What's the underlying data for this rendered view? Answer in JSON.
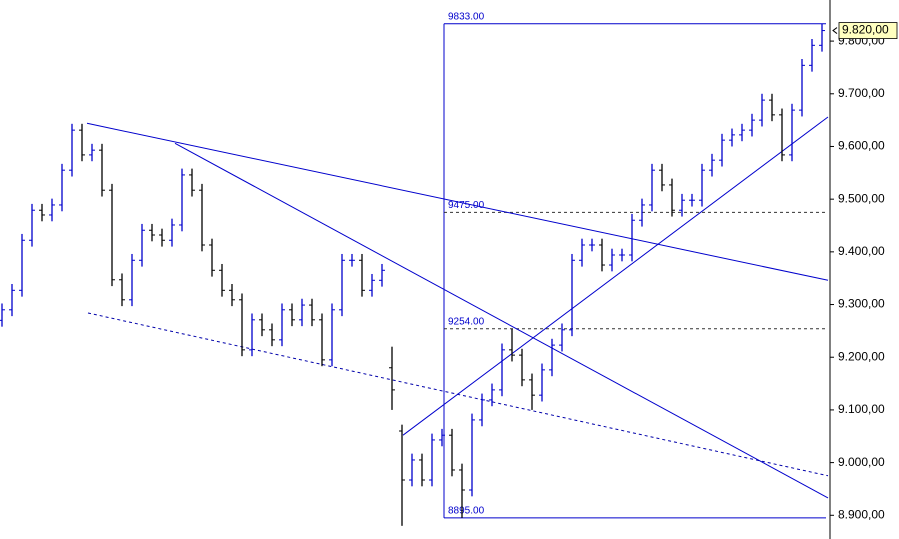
{
  "chart_data": {
    "type": "ohlc",
    "open": [
      9270,
      9290,
      9327,
      9422,
      9479,
      9470,
      9489,
      9555,
      9631,
      9584,
      9593,
      9517,
      9347,
      9309,
      9384,
      9441,
      9432,
      9422,
      9451,
      9546,
      9517,
      9413,
      9365,
      9327,
      9309,
      9214,
      9271,
      9252,
      9233,
      9290,
      9271,
      9299,
      9271,
      9195,
      9290,
      9384,
      9384,
      9327,
      9346,
      9180,
      9060,
      8967,
      9005,
      8967,
      9043,
      9052,
      8986,
      8948,
      9081,
      9119,
      9138,
      9214,
      9204,
      9157,
      9128,
      9176,
      9223,
      9252,
      9384,
      9413,
      9413,
      9375,
      9394,
      9394,
      9460,
      9489,
      9555,
      9527,
      9479,
      9498,
      9498,
      9555,
      9574,
      9612,
      9622,
      9631,
      9650,
      9688,
      9660,
      9584,
      9669,
      9754,
      9792
    ],
    "high": [
      9302,
      9339,
      9434,
      9491,
      9491,
      9501,
      9567,
      9643,
      9643,
      9605,
      9605,
      9529,
      9359,
      9396,
      9453,
      9453,
      9444,
      9463,
      9558,
      9558,
      9529,
      9425,
      9377,
      9339,
      9321,
      9283,
      9283,
      9264,
      9302,
      9302,
      9311,
      9311,
      9283,
      9302,
      9396,
      9396,
      9396,
      9358,
      9377,
      9220,
      9072,
      9017,
      9017,
      9055,
      9064,
      9064,
      8998,
      9093,
      9131,
      9150,
      9226,
      9254,
      9216,
      9169,
      9188,
      9235,
      9264,
      9396,
      9425,
      9425,
      9425,
      9406,
      9406,
      9472,
      9501,
      9567,
      9567,
      9539,
      9510,
      9510,
      9567,
      9586,
      9624,
      9634,
      9643,
      9662,
      9700,
      9700,
      9672,
      9681,
      9766,
      9804,
      9833
    ],
    "low": [
      9258,
      9278,
      9315,
      9410,
      9458,
      9458,
      9477,
      9543,
      9572,
      9572,
      9505,
      9335,
      9297,
      9297,
      9372,
      9420,
      9410,
      9410,
      9439,
      9505,
      9401,
      9353,
      9315,
      9297,
      9202,
      9202,
      9240,
      9221,
      9221,
      9259,
      9259,
      9259,
      9183,
      9183,
      9278,
      9372,
      9315,
      9315,
      9334,
      9100,
      8880,
      8955,
      8955,
      8955,
      9031,
      8974,
      8895,
      8936,
      9069,
      9107,
      9126,
      9192,
      9145,
      9100,
      9116,
      9164,
      9211,
      9240,
      9372,
      9401,
      9363,
      9363,
      9382,
      9382,
      9448,
      9477,
      9515,
      9467,
      9467,
      9486,
      9486,
      9543,
      9562,
      9600,
      9610,
      9619,
      9638,
      9648,
      9572,
      9572,
      9657,
      9742,
      9780
    ],
    "close": [
      9290,
      9327,
      9422,
      9479,
      9470,
      9489,
      9555,
      9631,
      9584,
      9593,
      9517,
      9347,
      9309,
      9384,
      9441,
      9432,
      9422,
      9451,
      9546,
      9517,
      9413,
      9365,
      9327,
      9309,
      9214,
      9271,
      9252,
      9233,
      9290,
      9271,
      9299,
      9271,
      9195,
      9290,
      9384,
      9384,
      9327,
      9346,
      9365,
      9138,
      8967,
      9005,
      8967,
      9043,
      9052,
      8986,
      8948,
      9081,
      9119,
      9138,
      9214,
      9204,
      9157,
      9128,
      9176,
      9223,
      9252,
      9384,
      9413,
      9413,
      9375,
      9394,
      9394,
      9460,
      9489,
      9555,
      9527,
      9479,
      9498,
      9498,
      9555,
      9574,
      9612,
      9622,
      9631,
      9650,
      9688,
      9660,
      9584,
      9669,
      9754,
      9792,
      9820
    ],
    "up_color": "#0000cc",
    "down_color": "#000000",
    "annotation_color": "#0000cc",
    "xlim": [
      -0.2,
      82.8
    ],
    "ylim": [
      8855,
      9878
    ],
    "yticks": [
      {
        "value": 8900,
        "label": "8.900,00"
      },
      {
        "value": 9000,
        "label": "9.000,00"
      },
      {
        "value": 9100,
        "label": "9.100,00"
      },
      {
        "value": 9200,
        "label": "9.200,00"
      },
      {
        "value": 9300,
        "label": "9.300,00"
      },
      {
        "value": 9400,
        "label": "9.400,00"
      },
      {
        "value": 9500,
        "label": "9.500,00"
      },
      {
        "value": 9600,
        "label": "9.600,00"
      },
      {
        "value": 9700,
        "label": "9.700,00"
      },
      {
        "value": 9800,
        "label": "9.800,00"
      }
    ],
    "last_value": {
      "value": 9820,
      "label": "9.820,00"
    },
    "trendlines": [
      {
        "x": [
          8.5,
          82.6
        ],
        "y": [
          9644,
          9346
        ],
        "style": "solid"
      },
      {
        "x": [
          17.3,
          82.6
        ],
        "y": [
          9606,
          8933
        ],
        "style": "solid"
      },
      {
        "x": [
          40.1,
          82.6
        ],
        "y": [
          9052,
          9656
        ],
        "style": "solid"
      },
      {
        "x": [
          8.6,
          82.6
        ],
        "y": [
          9284,
          8975
        ],
        "style": "dashed"
      }
    ],
    "levels": {
      "x": [
        44.2,
        82.4
      ],
      "lines": [
        {
          "value": 9833,
          "label": "9833.00",
          "style": "solid"
        },
        {
          "value": 9475,
          "label": "9475.00",
          "style": "dashed"
        },
        {
          "value": 9254,
          "label": "9254.00",
          "style": "dashed"
        },
        {
          "value": 8895,
          "label": "8895.00",
          "style": "solid"
        }
      ]
    }
  }
}
